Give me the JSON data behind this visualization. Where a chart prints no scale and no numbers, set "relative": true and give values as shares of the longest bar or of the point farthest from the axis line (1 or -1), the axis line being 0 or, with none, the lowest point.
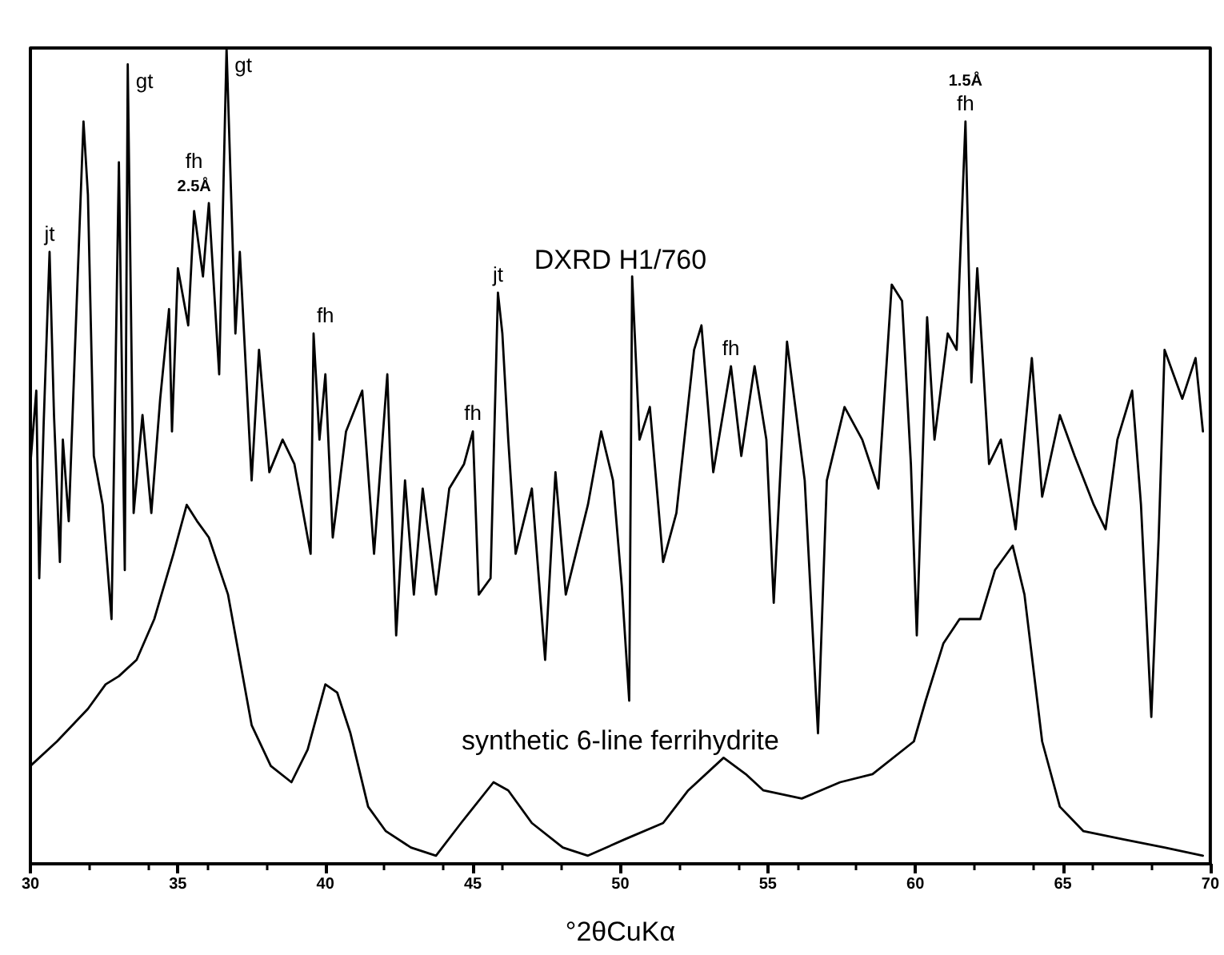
{
  "chart_data": {
    "type": "line",
    "relative": true,
    "xlabel": "°2θCuKα",
    "xlim": [
      30,
      70
    ],
    "xticks": [
      30,
      35,
      40,
      45,
      50,
      55,
      60,
      65,
      70
    ],
    "grid": false,
    "series": [
      {
        "name": "DXRD H1/760",
        "color": "#000000",
        "x": [
          30.0,
          30.2,
          30.3,
          30.45,
          30.65,
          30.8,
          31.0,
          31.1,
          31.3,
          31.5,
          31.8,
          31.95,
          32.15,
          32.45,
          32.75,
          33.0,
          33.2,
          33.3,
          33.5,
          33.8,
          34.1,
          34.4,
          34.7,
          34.8,
          35.0,
          35.35,
          35.55,
          35.85,
          36.05,
          36.4,
          36.65,
          36.95,
          37.1,
          37.5,
          37.75,
          38.1,
          38.55,
          38.95,
          39.5,
          39.6,
          39.8,
          40.0,
          40.25,
          40.7,
          41.25,
          41.65,
          42.1,
          42.4,
          42.7,
          43.0,
          43.3,
          43.75,
          44.2,
          44.7,
          45.0,
          45.2,
          45.6,
          45.85,
          46.0,
          46.2,
          46.45,
          47.0,
          47.45,
          47.8,
          48.15,
          48.9,
          49.35,
          49.75,
          50.05,
          50.3,
          50.4,
          50.65,
          51.0,
          51.45,
          51.9,
          52.5,
          52.75,
          53.15,
          53.75,
          54.1,
          54.55,
          54.95,
          55.2,
          55.65,
          56.25,
          56.7,
          57.0,
          57.6,
          58.2,
          58.75,
          59.2,
          59.55,
          59.85,
          60.05,
          60.4,
          60.65,
          61.1,
          61.4,
          61.7,
          61.9,
          62.1,
          62.5,
          62.9,
          63.4,
          63.95,
          64.3,
          64.9,
          65.4,
          66.05,
          66.45,
          66.85,
          67.35,
          67.65,
          68.0,
          68.25,
          68.45,
          69.05,
          69.5,
          69.75
        ],
        "values": [
          0.49,
          0.58,
          0.35,
          0.54,
          0.75,
          0.55,
          0.37,
          0.52,
          0.42,
          0.62,
          0.91,
          0.82,
          0.5,
          0.44,
          0.3,
          0.86,
          0.36,
          0.98,
          0.43,
          0.55,
          0.43,
          0.57,
          0.68,
          0.53,
          0.73,
          0.66,
          0.8,
          0.72,
          0.81,
          0.6,
          1.0,
          0.65,
          0.75,
          0.47,
          0.63,
          0.48,
          0.52,
          0.49,
          0.38,
          0.65,
          0.52,
          0.6,
          0.4,
          0.53,
          0.58,
          0.38,
          0.6,
          0.28,
          0.47,
          0.33,
          0.46,
          0.33,
          0.46,
          0.49,
          0.53,
          0.33,
          0.35,
          0.7,
          0.65,
          0.52,
          0.38,
          0.46,
          0.25,
          0.48,
          0.33,
          0.44,
          0.53,
          0.47,
          0.34,
          0.2,
          0.72,
          0.52,
          0.56,
          0.37,
          0.43,
          0.63,
          0.66,
          0.48,
          0.61,
          0.5,
          0.61,
          0.52,
          0.32,
          0.64,
          0.47,
          0.16,
          0.47,
          0.56,
          0.52,
          0.46,
          0.71,
          0.69,
          0.49,
          0.28,
          0.67,
          0.52,
          0.65,
          0.63,
          0.91,
          0.59,
          0.73,
          0.49,
          0.52,
          0.41,
          0.62,
          0.45,
          0.55,
          0.5,
          0.44,
          0.41,
          0.52,
          0.58,
          0.44,
          0.18,
          0.4,
          0.63,
          0.57,
          0.62,
          0.53
        ]
      },
      {
        "name": "synthetic 6-line ferrihydrite",
        "color": "#000000",
        "x": [
          30.0,
          30.9,
          31.95,
          32.55,
          33.0,
          33.6,
          34.2,
          34.85,
          35.3,
          35.65,
          36.05,
          36.7,
          37.1,
          37.5,
          38.15,
          38.85,
          39.4,
          40.0,
          40.4,
          40.85,
          41.45,
          42.05,
          42.9,
          43.75,
          44.6,
          45.7,
          46.2,
          47.0,
          48.05,
          48.9,
          50.15,
          51.45,
          52.3,
          53.5,
          54.25,
          54.85,
          56.15,
          57.45,
          58.55,
          59.95,
          60.35,
          60.95,
          61.5,
          62.2,
          62.7,
          63.3,
          63.7,
          64.3,
          64.9,
          65.7,
          67.05,
          68.45,
          69.75
        ],
        "values": [
          0.12,
          0.15,
          0.19,
          0.22,
          0.23,
          0.25,
          0.3,
          0.38,
          0.44,
          0.42,
          0.4,
          0.33,
          0.25,
          0.17,
          0.12,
          0.1,
          0.14,
          0.22,
          0.21,
          0.16,
          0.07,
          0.04,
          0.02,
          0.01,
          0.05,
          0.1,
          0.09,
          0.05,
          0.02,
          0.01,
          0.03,
          0.05,
          0.09,
          0.13,
          0.11,
          0.09,
          0.08,
          0.1,
          0.11,
          0.15,
          0.2,
          0.27,
          0.3,
          0.3,
          0.36,
          0.39,
          0.33,
          0.15,
          0.07,
          0.04,
          0.03,
          0.02,
          0.01
        ]
      }
    ],
    "annotations": [
      {
        "text": "jt",
        "x": 30.65,
        "y": 0.75
      },
      {
        "text": "gt",
        "x": 33.3,
        "y": 0.98
      },
      {
        "text": "2.5Å",
        "x": 35.55,
        "y": 0.8
      },
      {
        "text": "fh",
        "x": 35.55,
        "y": 0.8
      },
      {
        "text": "gt",
        "x": 36.65,
        "y": 1.0
      },
      {
        "text": "fh",
        "x": 40.0,
        "y": 0.6
      },
      {
        "text": "fh",
        "x": 45.0,
        "y": 0.53
      },
      {
        "text": "jt",
        "x": 45.85,
        "y": 0.7
      },
      {
        "text": "fh",
        "x": 53.75,
        "y": 0.61
      },
      {
        "text": "fh",
        "x": 61.7,
        "y": 0.91
      },
      {
        "text": "1.5Å",
        "x": 61.7,
        "y": 0.91
      }
    ]
  }
}
